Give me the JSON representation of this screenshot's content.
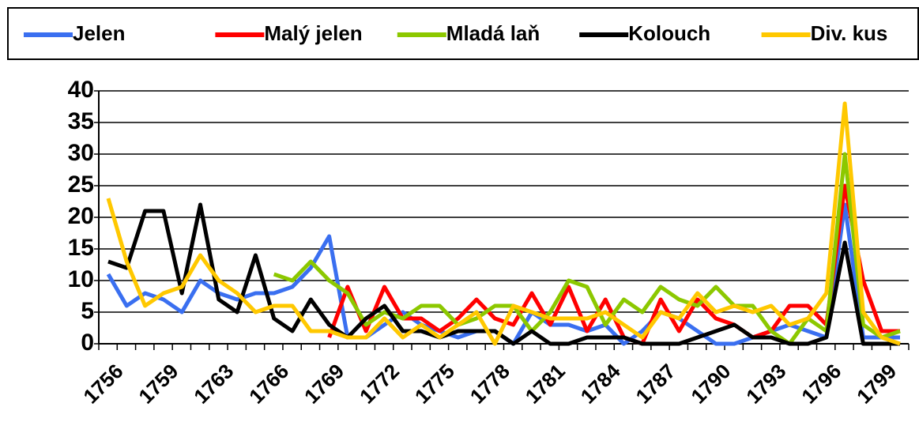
{
  "chart_data": {
    "type": "line",
    "categories": [
      "1756",
      null,
      null,
      "1759",
      null,
      null,
      "1763",
      null,
      null,
      "1766",
      null,
      null,
      "1769",
      null,
      null,
      "1772",
      null,
      null,
      "1775",
      null,
      null,
      "1778",
      null,
      null,
      "1781",
      null,
      null,
      "1784",
      null,
      null,
      "1787",
      null,
      null,
      "1790",
      null,
      null,
      "1793",
      null,
      null,
      "1796",
      null,
      null,
      "1799",
      null
    ],
    "series": [
      {
        "name": "Jelen",
        "color": "#3a6ff0",
        "values": [
          11,
          6,
          8,
          7,
          5,
          10,
          8,
          7,
          8,
          8,
          9,
          12,
          17,
          1,
          1,
          3,
          5,
          3,
          2,
          1,
          2,
          2,
          0,
          5,
          3,
          3,
          2,
          3,
          0,
          2,
          5,
          4,
          2,
          0,
          0,
          1,
          2,
          3,
          2,
          1,
          22,
          1,
          1,
          1
        ]
      },
      {
        "name": "Malý jelen",
        "color": "#ff0000",
        "values": [
          null,
          null,
          null,
          null,
          null,
          null,
          null,
          null,
          null,
          null,
          null,
          null,
          1,
          9,
          2,
          9,
          4,
          4,
          2,
          4,
          7,
          4,
          3,
          8,
          3,
          9,
          2,
          7,
          1,
          0,
          7,
          2,
          7,
          4,
          3,
          1,
          2,
          6,
          6,
          3,
          25,
          10,
          2,
          2
        ]
      },
      {
        "name": "Mladá laň",
        "color": "#8cc800",
        "values": [
          null,
          null,
          null,
          null,
          null,
          null,
          null,
          null,
          null,
          11,
          10,
          13,
          10,
          8,
          3,
          5,
          4,
          6,
          6,
          3,
          4,
          6,
          6,
          2,
          5,
          10,
          9,
          3,
          7,
          5,
          9,
          7,
          6,
          9,
          6,
          6,
          2,
          0,
          4,
          2,
          30,
          3,
          1,
          2
        ]
      },
      {
        "name": "Kolouch",
        "color": "#000000",
        "values": [
          13,
          12,
          21,
          21,
          8,
          22,
          7,
          5,
          14,
          4,
          2,
          7,
          3,
          1,
          4,
          6,
          2,
          2,
          1,
          2,
          2,
          2,
          0,
          2,
          0,
          0,
          1,
          1,
          1,
          0,
          0,
          0,
          1,
          2,
          3,
          1,
          1,
          0,
          0,
          1,
          16,
          0,
          0,
          0
        ]
      },
      {
        "name": "Div. kus",
        "color": "#ffc800",
        "values": [
          23,
          13,
          6,
          8,
          9,
          14,
          10,
          8,
          5,
          6,
          6,
          2,
          2,
          1,
          1,
          4,
          1,
          3,
          1,
          3,
          5,
          0,
          6,
          5,
          4,
          4,
          4,
          5,
          3,
          1,
          5,
          4,
          8,
          5,
          6,
          5,
          6,
          3,
          4,
          8,
          38,
          5,
          1,
          0
        ]
      }
    ],
    "ylim": [
      0,
      40
    ],
    "yticks": [
      0,
      5,
      10,
      15,
      20,
      25,
      30,
      35,
      40
    ],
    "grid": true,
    "legend": "top"
  }
}
